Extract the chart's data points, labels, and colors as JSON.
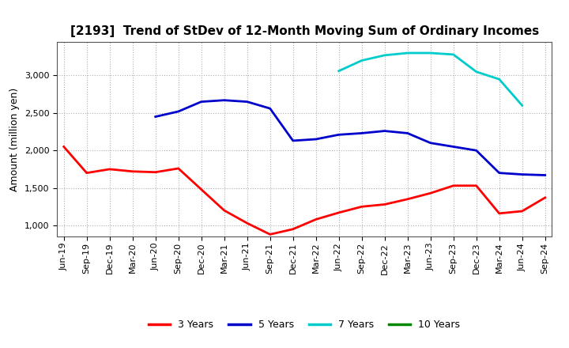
{
  "title": "[2193]  Trend of StDev of 12-Month Moving Sum of Ordinary Incomes",
  "ylabel": "Amount (million yen)",
  "ylim": [
    850,
    3450
  ],
  "yticks": [
    1000,
    1500,
    2000,
    2500,
    3000
  ],
  "background_color": "#ffffff",
  "grid_color": "#b0b0b0",
  "title_fontsize": 11,
  "axis_fontsize": 9,
  "tick_fontsize": 8,
  "x_labels": [
    "Jun-19",
    "Sep-19",
    "Dec-19",
    "Mar-20",
    "Jun-20",
    "Sep-20",
    "Dec-20",
    "Mar-21",
    "Jun-21",
    "Sep-21",
    "Dec-21",
    "Mar-22",
    "Jun-22",
    "Sep-22",
    "Dec-22",
    "Mar-23",
    "Jun-23",
    "Sep-23",
    "Dec-23",
    "Mar-24",
    "Jun-24",
    "Sep-24"
  ],
  "series": {
    "3 Years": {
      "color": "#ff0000",
      "values": [
        2050,
        1700,
        1750,
        1720,
        1710,
        1760,
        1480,
        1200,
        1030,
        880,
        950,
        1080,
        1170,
        1250,
        1280,
        1350,
        1430,
        1530,
        1530,
        1160,
        1190,
        1370
      ]
    },
    "5 Years": {
      "color": "#0000cc",
      "values": [
        null,
        null,
        null,
        null,
        2450,
        2520,
        2650,
        2670,
        2650,
        2560,
        2130,
        2150,
        2210,
        2230,
        2260,
        2230,
        2100,
        2050,
        2000,
        1700,
        1680,
        1670
      ]
    },
    "7 Years": {
      "color": "#00cccc",
      "values": [
        null,
        null,
        null,
        null,
        null,
        null,
        null,
        null,
        null,
        null,
        null,
        null,
        3060,
        3200,
        3270,
        3300,
        3300,
        3280,
        3050,
        2950,
        2600,
        null
      ]
    },
    "10 Years": {
      "color": "#008800",
      "values": [
        null,
        null,
        null,
        null,
        null,
        null,
        null,
        null,
        null,
        null,
        null,
        null,
        null,
        null,
        null,
        null,
        null,
        null,
        null,
        null,
        null,
        null
      ]
    }
  },
  "legend_entries": [
    "3 Years",
    "5 Years",
    "7 Years",
    "10 Years"
  ],
  "legend_colors": [
    "#ff0000",
    "#0000cc",
    "#00cccc",
    "#008800"
  ]
}
